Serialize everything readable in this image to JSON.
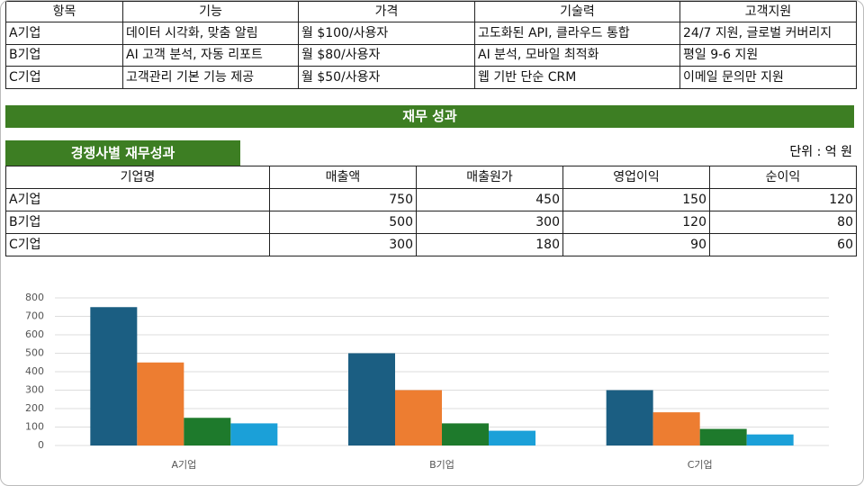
{
  "features_table": {
    "header": [
      "항목",
      "기능",
      "가격",
      "기술력",
      "고객지원"
    ],
    "rows": [
      [
        "A기업",
        "데이터 시각화, 맞춤 알림",
        "월 $100/사용자",
        "고도화된 API, 클라우드 통합",
        "24/7 지원, 글로벌 커버리지"
      ],
      [
        "B기업",
        "AI 고객 분석, 자동 리포트",
        "월 $80/사용자",
        "AI 분석, 모바일 최적화",
        "평일 9-6 지원"
      ],
      [
        "C기업",
        "고객관리 기본 기능 제공",
        "월 $50/사용자",
        "웹 기반 단순 CRM",
        "이메일 문의만 지원"
      ]
    ]
  },
  "section_title": "재무 성과",
  "finance_title": "경쟁사별 재무성과",
  "unit": "단위 : 억 원",
  "finance_table": {
    "header": [
      "기업명",
      "매출액",
      "매출원가",
      "영업이익",
      "순이익"
    ],
    "rows": [
      [
        "A기업",
        750,
        450,
        150,
        120
      ],
      [
        "B기업",
        500,
        300,
        120,
        80
      ],
      [
        "C기업",
        300,
        180,
        90,
        60
      ]
    ]
  },
  "chart_data": {
    "type": "bar",
    "categories": [
      "A기업",
      "B기업",
      "C기업"
    ],
    "series": [
      {
        "color": "#1b5e82",
        "values": [
          750,
          500,
          300
        ]
      },
      {
        "color": "#ed7d31",
        "values": [
          450,
          300,
          180
        ]
      },
      {
        "color": "#1e7a2c",
        "values": [
          150,
          120,
          90
        ]
      },
      {
        "color": "#1ba0d8",
        "values": [
          120,
          80,
          60
        ]
      }
    ],
    "ylim": [
      0,
      800
    ],
    "yticks": [
      0,
      100,
      200,
      300,
      400,
      500,
      600,
      700,
      800
    ],
    "grid": true
  }
}
